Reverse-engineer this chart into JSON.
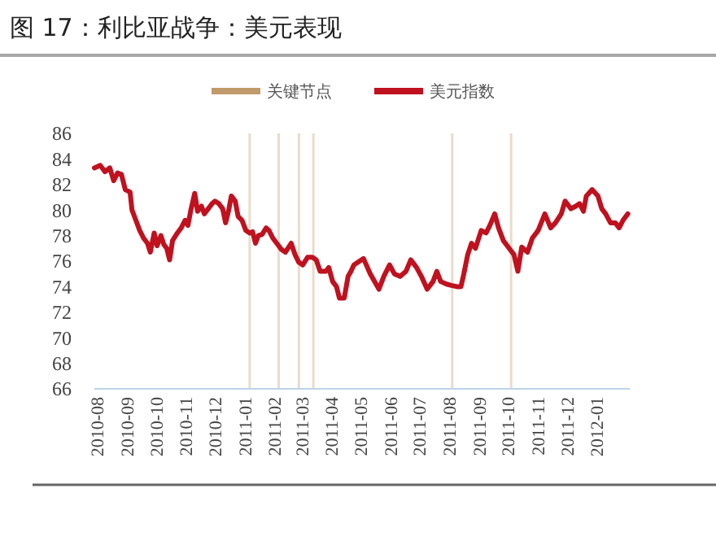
{
  "chart_data": {
    "type": "line",
    "title": "图 17：利比亚战争：美元表现",
    "legend": "top",
    "grid": false,
    "line_style": "solid",
    "marker": "none",
    "xlim": [
      "2010-07-29",
      "2012-02-04"
    ],
    "xticks": [
      "2010-08",
      "2010-09",
      "2010-10",
      "2010-11",
      "2010-12",
      "2011-01",
      "2011-02",
      "2011-03",
      "2011-04",
      "2011-05",
      "2011-06",
      "2011-07",
      "2011-08",
      "2011-09",
      "2011-10",
      "2011-11",
      "2011-12",
      "2012-01"
    ],
    "ylim": [
      66,
      86
    ],
    "yticks": [
      66,
      68,
      70,
      72,
      74,
      76,
      78,
      80,
      82,
      84,
      86
    ],
    "series": [
      {
        "name": "关键节点",
        "type": "bar",
        "color": "#c19a6b",
        "x": [
          "2011-01-06",
          "2011-02-05",
          "2011-02-26",
          "2011-03-13",
          "2011-08-04",
          "2011-10-04"
        ],
        "values": [
          86,
          86,
          86,
          86,
          86,
          86
        ]
      },
      {
        "name": "美元指数",
        "color": "#c0111f",
        "x": [
          "2010-07-29",
          "2010-08-04",
          "2010-08-09",
          "2010-08-14",
          "2010-08-18",
          "2010-08-22",
          "2010-08-26",
          "2010-08-30",
          "2010-09-04",
          "2010-09-06",
          "2010-09-10",
          "2010-09-14",
          "2010-09-18",
          "2010-09-22",
          "2010-09-25",
          "2010-09-29",
          "2010-10-02",
          "2010-10-06",
          "2010-10-09",
          "2010-10-12",
          "2010-10-15",
          "2010-10-18",
          "2010-10-23",
          "2010-10-27",
          "2010-10-31",
          "2010-11-03",
          "2010-11-06",
          "2010-11-10",
          "2010-11-13",
          "2010-11-17",
          "2010-11-20",
          "2010-11-24",
          "2010-11-28",
          "2010-12-01",
          "2010-12-05",
          "2010-12-09",
          "2010-12-12",
          "2010-12-15",
          "2010-12-18",
          "2010-12-22",
          "2010-12-25",
          "2010-12-29",
          "2011-01-02",
          "2011-01-06",
          "2011-01-09",
          "2011-01-12",
          "2011-01-15",
          "2011-01-19",
          "2011-01-23",
          "2011-01-26",
          "2011-01-30",
          "2011-02-03",
          "2011-02-08",
          "2011-02-12",
          "2011-02-18",
          "2011-02-22",
          "2011-02-26",
          "2011-03-02",
          "2011-03-07",
          "2011-03-12",
          "2011-03-16",
          "2011-03-20",
          "2011-03-26",
          "2011-03-29",
          "2011-04-02",
          "2011-04-06",
          "2011-04-09",
          "2011-04-14",
          "2011-04-18",
          "2011-04-21",
          "2011-04-24",
          "2011-05-04",
          "2011-05-11",
          "2011-05-20",
          "2011-05-25",
          "2011-05-31",
          "2011-06-05",
          "2011-06-11",
          "2011-06-17",
          "2011-06-22",
          "2011-06-28",
          "2011-07-03",
          "2011-07-09",
          "2011-07-15",
          "2011-07-19",
          "2011-07-23",
          "2011-07-29",
          "2011-08-03",
          "2011-08-09",
          "2011-08-13",
          "2011-08-16",
          "2011-08-20",
          "2011-08-24",
          "2011-08-28",
          "2011-09-03",
          "2011-09-08",
          "2011-09-12",
          "2011-09-17",
          "2011-09-21",
          "2011-09-26",
          "2011-10-01",
          "2011-10-07",
          "2011-10-11",
          "2011-10-15",
          "2011-10-21",
          "2011-10-26",
          "2011-11-01",
          "2011-11-08",
          "2011-11-14",
          "2011-11-19",
          "2011-11-25",
          "2011-11-29",
          "2011-12-05",
          "2011-12-10",
          "2011-12-14",
          "2011-12-18",
          "2011-12-21",
          "2011-12-27",
          "2012-01-02",
          "2012-01-06",
          "2012-01-10",
          "2012-01-15",
          "2012-01-20",
          "2012-01-24",
          "2012-01-28",
          "2012-02-02"
        ],
        "values": [
          83.3,
          83.5,
          83.0,
          83.3,
          82.3,
          82.9,
          82.8,
          81.6,
          81.4,
          80.0,
          79.2,
          78.4,
          77.8,
          77.4,
          76.7,
          78.2,
          77.2,
          78.0,
          77.3,
          77.0,
          76.1,
          77.6,
          78.2,
          78.6,
          79.2,
          78.8,
          80.0,
          81.3,
          79.9,
          80.3,
          79.7,
          80.1,
          80.5,
          80.7,
          80.5,
          80.1,
          79.0,
          79.9,
          81.1,
          80.7,
          79.5,
          79.2,
          78.4,
          78.2,
          78.3,
          77.4,
          78.0,
          78.1,
          78.6,
          78.4,
          77.8,
          77.4,
          76.9,
          76.7,
          77.4,
          76.5,
          75.9,
          75.7,
          76.3,
          76.3,
          76.1,
          75.2,
          75.2,
          75.5,
          74.4,
          74.0,
          73.1,
          73.1,
          74.8,
          75.2,
          75.7,
          76.2,
          75.0,
          73.8,
          74.8,
          75.7,
          75.0,
          74.8,
          75.2,
          76.1,
          75.5,
          74.8,
          73.8,
          74.4,
          75.2,
          74.4,
          74.2,
          74.1,
          74.0,
          74.0,
          75.0,
          76.5,
          77.4,
          77.0,
          78.4,
          78.2,
          78.8,
          79.7,
          78.6,
          77.6,
          77.1,
          76.5,
          75.2,
          77.1,
          76.7,
          77.8,
          78.4,
          79.7,
          78.6,
          79.0,
          79.7,
          80.7,
          80.1,
          80.3,
          80.5,
          79.9,
          81.1,
          81.6,
          81.1,
          80.1,
          79.7,
          79.0,
          79.0,
          78.6,
          79.2,
          79.7
        ]
      }
    ]
  }
}
